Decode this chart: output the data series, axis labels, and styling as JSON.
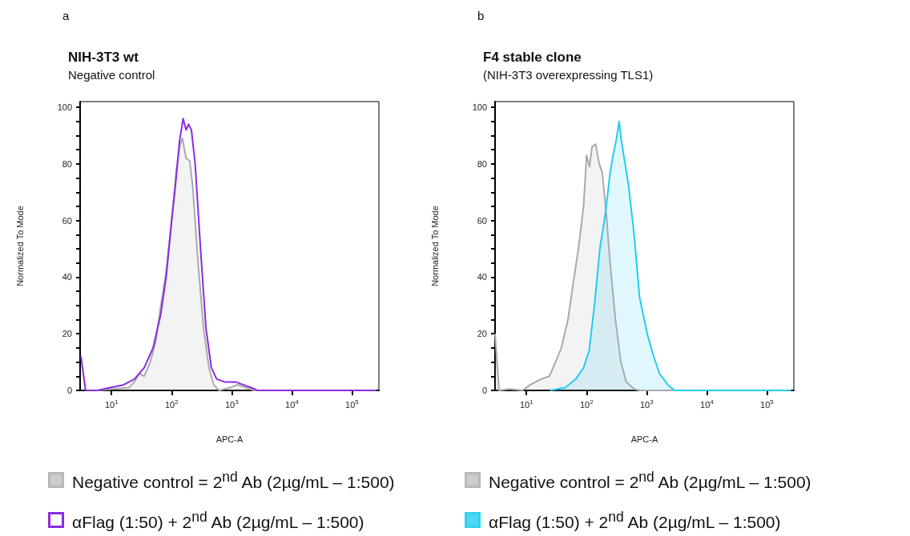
{
  "chart_data": [
    {
      "type": "area",
      "title": "NIH-3T3 wt",
      "subtitle": "Negative control",
      "xlabel": "APC-A",
      "ylabel": "Normalized To Mode",
      "annotations": [
        "a"
      ],
      "log": "x",
      "legend": "bottom",
      "xlim": [
        3,
        280000
      ],
      "xticks": [
        {
          "value": 10,
          "label": "10$^{1}$"
        },
        {
          "value": 100,
          "label": "10$^{2}$"
        },
        {
          "value": 1000,
          "label": "10$^{3}$"
        },
        {
          "value": 10000,
          "label": "10$^{4}$"
        },
        {
          "value": 100000,
          "label": "10$^{5}$"
        }
      ],
      "ylim": [
        0,
        102
      ],
      "yticks": [
        0,
        {
          "value": 5,
          "label": null
        },
        {
          "value": 10,
          "label": null
        },
        {
          "value": 15,
          "label": null
        },
        20,
        {
          "value": 25,
          "label": null
        },
        {
          "value": 30,
          "label": null
        },
        {
          "value": 35,
          "label": null
        },
        40,
        {
          "value": 45,
          "label": null
        },
        {
          "value": 50,
          "label": null
        },
        {
          "value": 55,
          "label": null
        },
        60,
        {
          "value": 65,
          "label": null
        },
        {
          "value": 70,
          "label": null
        },
        {
          "value": 75,
          "label": null
        },
        80,
        {
          "value": 85,
          "label": null
        },
        {
          "value": 90,
          "label": null
        },
        {
          "value": 95,
          "label": null
        },
        100
      ],
      "series": [
        {
          "name": "Negative control = 2$^{nd}$ Ab (2µg/mL – 1:500)",
          "type": "area",
          "color": "#aaaaaa",
          "x": [
            5.8,
            19.5,
            24,
            29,
            35,
            44,
            54,
            66,
            81,
            100,
            120,
            138,
            151,
            174,
            200,
            224,
            275,
            339,
            417,
            501,
            617,
            933,
            1260,
            1700,
            2340,
            250000
          ],
          "values": [
            0,
            1,
            3,
            6,
            5,
            10,
            17,
            30,
            42,
            60,
            78,
            87,
            89,
            82,
            81,
            72,
            45,
            22,
            8,
            2,
            0,
            1,
            2,
            1,
            0,
            0
          ]
        },
        {
          "name": "αFlag (1:50) + 2$^{nd}$ Ab (2µg/mL – 1:500)",
          "type": "line",
          "color": "#8a2be2",
          "x": [
            3.1,
            3.7,
            5.8,
            9.5,
            16,
            24,
            35,
            49,
            66,
            81,
            100,
            115,
            135,
            155,
            174,
            191,
            213,
            246,
            302,
            372,
            457,
            562,
            759,
            1150,
            1550,
            2090,
            2690,
            250000
          ],
          "values": [
            12,
            0,
            0,
            1,
            2,
            4,
            8,
            15,
            27,
            40,
            60,
            72,
            88,
            96,
            92,
            94,
            92,
            80,
            50,
            22,
            8,
            4,
            3,
            3,
            2,
            1,
            0,
            0
          ]
        }
      ]
    },
    {
      "type": "area",
      "title": "F4 stable clone",
      "subtitle": "(NIH-3T3 overexpressing TLS1)",
      "xlabel": "APC-A",
      "ylabel": "Normalized To Mode",
      "annotations": [
        "b"
      ],
      "log": "x",
      "legend": "bottom",
      "xlim": [
        3,
        280000
      ],
      "xticks": [
        {
          "value": 10,
          "label": "10$^{1}$"
        },
        {
          "value": 100,
          "label": "10$^{2}$"
        },
        {
          "value": 1000,
          "label": "10$^{3}$"
        },
        {
          "value": 10000,
          "label": "10$^{4}$"
        },
        {
          "value": 100000,
          "label": "10$^{5}$"
        }
      ],
      "ylim": [
        0,
        102
      ],
      "yticks": [
        0,
        {
          "value": 5,
          "label": null
        },
        {
          "value": 10,
          "label": null
        },
        {
          "value": 15,
          "label": null
        },
        20,
        {
          "value": 25,
          "label": null
        },
        {
          "value": 30,
          "label": null
        },
        {
          "value": 35,
          "label": null
        },
        40,
        {
          "value": 45,
          "label": null
        },
        {
          "value": 50,
          "label": null
        },
        {
          "value": 55,
          "label": null
        },
        60,
        {
          "value": 65,
          "label": null
        },
        {
          "value": 70,
          "label": null
        },
        {
          "value": 75,
          "label": null
        },
        80,
        {
          "value": 85,
          "label": null
        },
        {
          "value": 90,
          "label": null
        },
        {
          "value": 95,
          "label": null
        },
        100
      ],
      "series": [
        {
          "name": "Negative control = 2$^{nd}$ Ab (2µg/mL – 1:500)",
          "type": "area",
          "color": "#aaaaaa",
          "x": [
            3.0,
            3.5,
            5.2,
            8.6,
            11.6,
            17.5,
            24,
            29,
            38,
            49,
            59,
            73,
            89,
            100,
            112,
            123,
            141,
            162,
            182,
            213,
            246,
            302,
            372,
            457,
            617,
            759,
            250000
          ],
          "values": [
            20,
            0,
            0.5,
            0,
            2,
            4,
            5,
            9,
            15,
            25,
            37,
            50,
            65,
            83,
            79,
            86,
            87,
            80,
            77,
            62,
            45,
            25,
            10,
            3,
            0.5,
            0,
            0
          ]
        },
        {
          "name": "αFlag (1:50) + 2$^{nd}$ Ab (2µg/mL – 1:500)",
          "type": "area",
          "color": "#22ccf0",
          "x": [
            25,
            44,
            66,
            89,
            110,
            135,
            166,
            204,
            246,
            275,
            309,
            347,
            380,
            437,
            501,
            617,
            759,
            1020,
            1260,
            1620,
            2240,
            2880,
            250000
          ],
          "values": [
            0,
            1,
            4,
            8,
            14,
            30,
            50,
            62,
            77,
            83,
            88,
            95,
            88,
            80,
            72,
            55,
            33,
            20,
            13,
            6,
            2,
            0,
            0
          ]
        }
      ]
    }
  ]
}
